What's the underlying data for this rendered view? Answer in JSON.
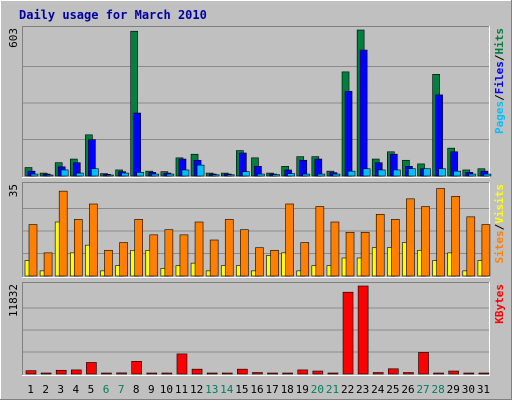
{
  "chart_data": {
    "type": "bar",
    "title": "Daily usage for March 2010",
    "categories": [
      "1",
      "2",
      "3",
      "4",
      "5",
      "6",
      "7",
      "8",
      "9",
      "10",
      "11",
      "12",
      "13",
      "14",
      "15",
      "16",
      "17",
      "18",
      "19",
      "20",
      "21",
      "22",
      "23",
      "24",
      "25",
      "26",
      "27",
      "28",
      "29",
      "30",
      "31"
    ],
    "weekend_days": [
      "6",
      "7",
      "13",
      "14",
      "20",
      "21",
      "27",
      "28"
    ],
    "panels": [
      {
        "id": "hits_files_pages",
        "ymax_label": "603",
        "ylim": [
          0,
          603
        ],
        "axis_labels": [
          {
            "text": "Pages",
            "color": "#00c0ff"
          },
          {
            "text": "/",
            "color": "#000000"
          },
          {
            "text": "Files",
            "color": "#0000ff"
          },
          {
            "text": "/",
            "color": "#000000"
          },
          {
            "text": "Hits",
            "color": "#008040"
          }
        ],
        "series": [
          {
            "name": "Hits",
            "color": "#008040",
            "values": [
              35,
              12,
              55,
              70,
              170,
              10,
              25,
              598,
              20,
              18,
              75,
              90,
              12,
              12,
              105,
              75,
              12,
              40,
              80,
              80,
              20,
              430,
              603,
              70,
              100,
              65,
              50,
              420,
              115,
              25,
              30
            ]
          },
          {
            "name": "Files",
            "color": "#0000ff",
            "values": [
              20,
              8,
              38,
              55,
              150,
              7,
              18,
              260,
              15,
              12,
              70,
              65,
              8,
              8,
              95,
              40,
              8,
              25,
              65,
              70,
              14,
              350,
              520,
              55,
              90,
              40,
              30,
              335,
              100,
              15,
              20
            ]
          },
          {
            "name": "Pages",
            "color": "#00c0ff",
            "values": [
              8,
              4,
              25,
              12,
              30,
              4,
              12,
              15,
              8,
              8,
              25,
              45,
              5,
              5,
              18,
              8,
              6,
              10,
              8,
              8,
              8,
              20,
              30,
              25,
              25,
              30,
              30,
              30,
              20,
              8,
              8
            ]
          }
        ]
      },
      {
        "id": "visits_sites",
        "ymax_label": "35",
        "ylim": [
          0,
          35
        ],
        "axis_labels": [
          {
            "text": "Sites",
            "color": "#ff8000"
          },
          {
            "text": "/",
            "color": "#000000"
          },
          {
            "text": "Visits",
            "color": "#ffff00"
          }
        ],
        "series": [
          {
            "name": "Visits",
            "color": "#ffff00",
            "values": [
              6,
              2,
              21,
              9,
              12,
              2,
              4,
              10,
              10,
              3,
              4,
              5,
              2,
              4,
              4,
              2,
              8,
              9,
              2,
              4,
              4,
              7,
              7,
              11,
              11,
              13,
              10,
              6,
              9,
              2,
              6
            ]
          },
          {
            "name": "Sites",
            "color": "#ff8000",
            "values": [
              20,
              9,
              33,
              22,
              28,
              10,
              13,
              22,
              16,
              18,
              16,
              21,
              14,
              22,
              18,
              11,
              10,
              28,
              13,
              27,
              21,
              17,
              17,
              24,
              22,
              30,
              27,
              34,
              31,
              23,
              20
            ]
          }
        ]
      },
      {
        "id": "kbytes",
        "ymax_label": "11832",
        "ylim": [
          0,
          11832
        ],
        "axis_labels": [
          {
            "text": "KBytes",
            "color": "#ff0000"
          }
        ],
        "series": [
          {
            "name": "KBytes",
            "color": "#ff0000",
            "values": [
              450,
              100,
              500,
              550,
              1550,
              100,
              150,
              1700,
              100,
              100,
              2700,
              650,
              100,
              100,
              650,
              200,
              100,
              100,
              550,
              400,
              100,
              11000,
              11832,
              200,
              700,
              200,
              2900,
              100,
              400,
              100,
              100
            ]
          }
        ]
      }
    ]
  }
}
